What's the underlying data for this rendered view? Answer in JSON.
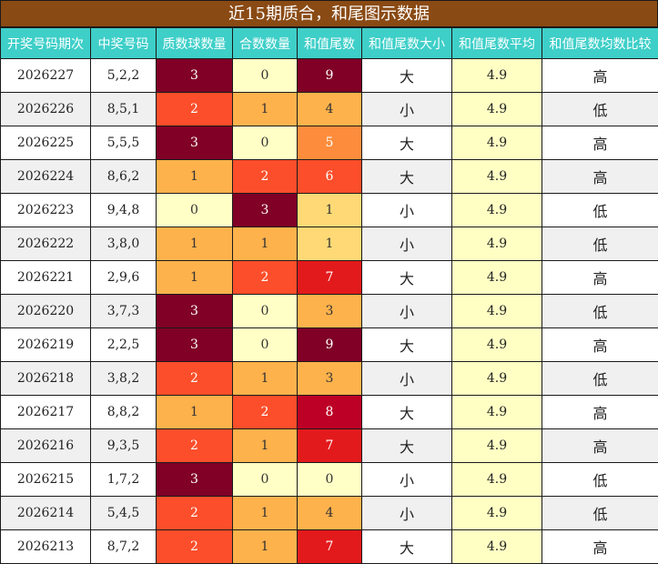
{
  "title": "近15期质合，和尾图示数据",
  "columns": [
    "开奖号码期次",
    "中奖号码",
    "质数球数量",
    "合数数量",
    "和值尾数",
    "和值尾数大小",
    "和值尾数平均",
    "和值尾数均数比较"
  ],
  "rows": [
    {
      "period": "2026227",
      "numbers": "5,2,2",
      "prime": "3",
      "composite": "0",
      "tail": "9",
      "size": "大",
      "avg": "4.9",
      "compare": "高",
      "prime_heat": 7,
      "composite_heat": 0,
      "tail_heat": 7
    },
    {
      "period": "2026226",
      "numbers": "8,5,1",
      "prime": "2",
      "composite": "1",
      "tail": "4",
      "size": "小",
      "avg": "4.9",
      "compare": "低",
      "prime_heat": 4,
      "composite_heat": 2,
      "tail_heat": 2
    },
    {
      "period": "2026225",
      "numbers": "5,5,5",
      "prime": "3",
      "composite": "0",
      "tail": "5",
      "size": "大",
      "avg": "4.9",
      "compare": "高",
      "prime_heat": 7,
      "composite_heat": 0,
      "tail_heat": 3
    },
    {
      "period": "2026224",
      "numbers": "8,6,2",
      "prime": "1",
      "composite": "2",
      "tail": "6",
      "size": "大",
      "avg": "4.9",
      "compare": "高",
      "prime_heat": 2,
      "composite_heat": 4,
      "tail_heat": 4
    },
    {
      "period": "2026223",
      "numbers": "9,4,8",
      "prime": "0",
      "composite": "3",
      "tail": "1",
      "size": "小",
      "avg": "4.9",
      "compare": "低",
      "prime_heat": 0,
      "composite_heat": 7,
      "tail_heat": 1
    },
    {
      "period": "2026222",
      "numbers": "3,8,0",
      "prime": "1",
      "composite": "1",
      "tail": "1",
      "size": "小",
      "avg": "4.9",
      "compare": "低",
      "prime_heat": 2,
      "composite_heat": 2,
      "tail_heat": 1
    },
    {
      "period": "2026221",
      "numbers": "2,9,6",
      "prime": "1",
      "composite": "2",
      "tail": "7",
      "size": "大",
      "avg": "4.9",
      "compare": "高",
      "prime_heat": 2,
      "composite_heat": 4,
      "tail_heat": 5
    },
    {
      "period": "2026220",
      "numbers": "3,7,3",
      "prime": "3",
      "composite": "0",
      "tail": "3",
      "size": "小",
      "avg": "4.9",
      "compare": "低",
      "prime_heat": 7,
      "composite_heat": 0,
      "tail_heat": 2
    },
    {
      "period": "2026219",
      "numbers": "2,2,5",
      "prime": "3",
      "composite": "0",
      "tail": "9",
      "size": "大",
      "avg": "4.9",
      "compare": "高",
      "prime_heat": 7,
      "composite_heat": 0,
      "tail_heat": 7
    },
    {
      "period": "2026218",
      "numbers": "3,8,2",
      "prime": "2",
      "composite": "1",
      "tail": "3",
      "size": "小",
      "avg": "4.9",
      "compare": "低",
      "prime_heat": 4,
      "composite_heat": 2,
      "tail_heat": 2
    },
    {
      "period": "2026217",
      "numbers": "8,8,2",
      "prime": "1",
      "composite": "2",
      "tail": "8",
      "size": "大",
      "avg": "4.9",
      "compare": "高",
      "prime_heat": 2,
      "composite_heat": 4,
      "tail_heat": 6
    },
    {
      "period": "2026216",
      "numbers": "9,3,5",
      "prime": "2",
      "composite": "1",
      "tail": "7",
      "size": "大",
      "avg": "4.9",
      "compare": "高",
      "prime_heat": 4,
      "composite_heat": 2,
      "tail_heat": 5
    },
    {
      "period": "2026215",
      "numbers": "1,7,2",
      "prime": "3",
      "composite": "0",
      "tail": "0",
      "size": "小",
      "avg": "4.9",
      "compare": "低",
      "prime_heat": 7,
      "composite_heat": 0,
      "tail_heat": 0
    },
    {
      "period": "2026214",
      "numbers": "5,4,5",
      "prime": "2",
      "composite": "1",
      "tail": "4",
      "size": "小",
      "avg": "4.9",
      "compare": "低",
      "prime_heat": 4,
      "composite_heat": 2,
      "tail_heat": 2
    },
    {
      "period": "2026213",
      "numbers": "8,7,2",
      "prime": "2",
      "composite": "1",
      "tail": "7",
      "size": "大",
      "avg": "4.9",
      "compare": "高",
      "prime_heat": 4,
      "composite_heat": 2,
      "tail_heat": 5
    }
  ]
}
